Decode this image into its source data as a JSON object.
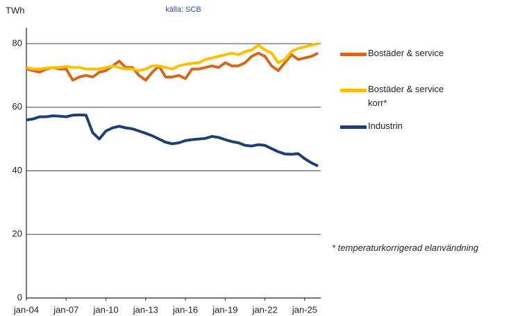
{
  "chart_data": {
    "type": "line",
    "subtitle": "källa: SCB",
    "y_label": "TWh",
    "annotation": "* temperaturkorrigerad elanvändning",
    "categories": [
      "jan-04",
      null,
      null,
      null,
      null,
      null,
      "jan-07",
      null,
      null,
      null,
      null,
      null,
      "jan-10",
      null,
      null,
      null,
      null,
      null,
      "jan-13",
      null,
      null,
      null,
      null,
      null,
      "jan-16",
      null,
      null,
      null,
      null,
      null,
      "jan-19",
      null,
      null,
      null,
      null,
      null,
      "jan-22",
      null,
      null,
      null,
      null,
      null,
      "jan-25",
      null,
      null
    ],
    "series": [
      {
        "name": "Bostäder & service",
        "color": "#d2691e",
        "values": [
          72,
          71.5,
          71,
          72,
          72.5,
          72,
          72,
          68.5,
          69.5,
          70,
          69.5,
          71,
          71.5,
          73,
          74.5,
          72.5,
          72.5,
          70,
          68.5,
          71,
          73,
          69.5,
          69.5,
          70,
          69,
          72,
          72,
          72.5,
          73,
          72.5,
          74,
          73,
          73,
          74,
          76,
          77,
          76,
          73,
          71.5,
          74,
          76.5,
          75,
          75.5,
          76,
          77
        ]
      },
      {
        "name": "Bostäder & service korr*",
        "color": "#ffc000",
        "values": [
          72.5,
          72,
          72,
          72.3,
          72.5,
          72.5,
          72.8,
          72.5,
          72.5,
          72,
          72,
          72,
          72.5,
          73,
          72.5,
          72,
          72,
          71.5,
          72,
          73,
          73,
          72.5,
          72,
          73,
          73.5,
          73.8,
          74,
          75,
          75.5,
          76,
          76.5,
          77,
          76.5,
          77.5,
          78,
          79.5,
          78,
          77,
          74,
          75,
          77.5,
          78.5,
          79,
          79.5,
          80
        ]
      },
      {
        "name": "Industrin",
        "color": "#1f3f73",
        "values": [
          56,
          56.3,
          57,
          57,
          57.3,
          57.2,
          57,
          57.5,
          57.6,
          57.5,
          52,
          50,
          52.5,
          53.5,
          54,
          53.5,
          53.2,
          52.5,
          51.8,
          51,
          50,
          49,
          48.5,
          48.8,
          49.5,
          49.8,
          50,
          50.2,
          50.8,
          50.5,
          49.8,
          49.2,
          48.8,
          48,
          47.8,
          48.2,
          48,
          47,
          46,
          45.3,
          45.2,
          45.4,
          43.8,
          42.5,
          41.5
        ]
      }
    ],
    "ylim": [
      0,
      85
    ],
    "yticks": [
      0,
      20,
      40,
      60,
      80
    ],
    "grid": true
  }
}
